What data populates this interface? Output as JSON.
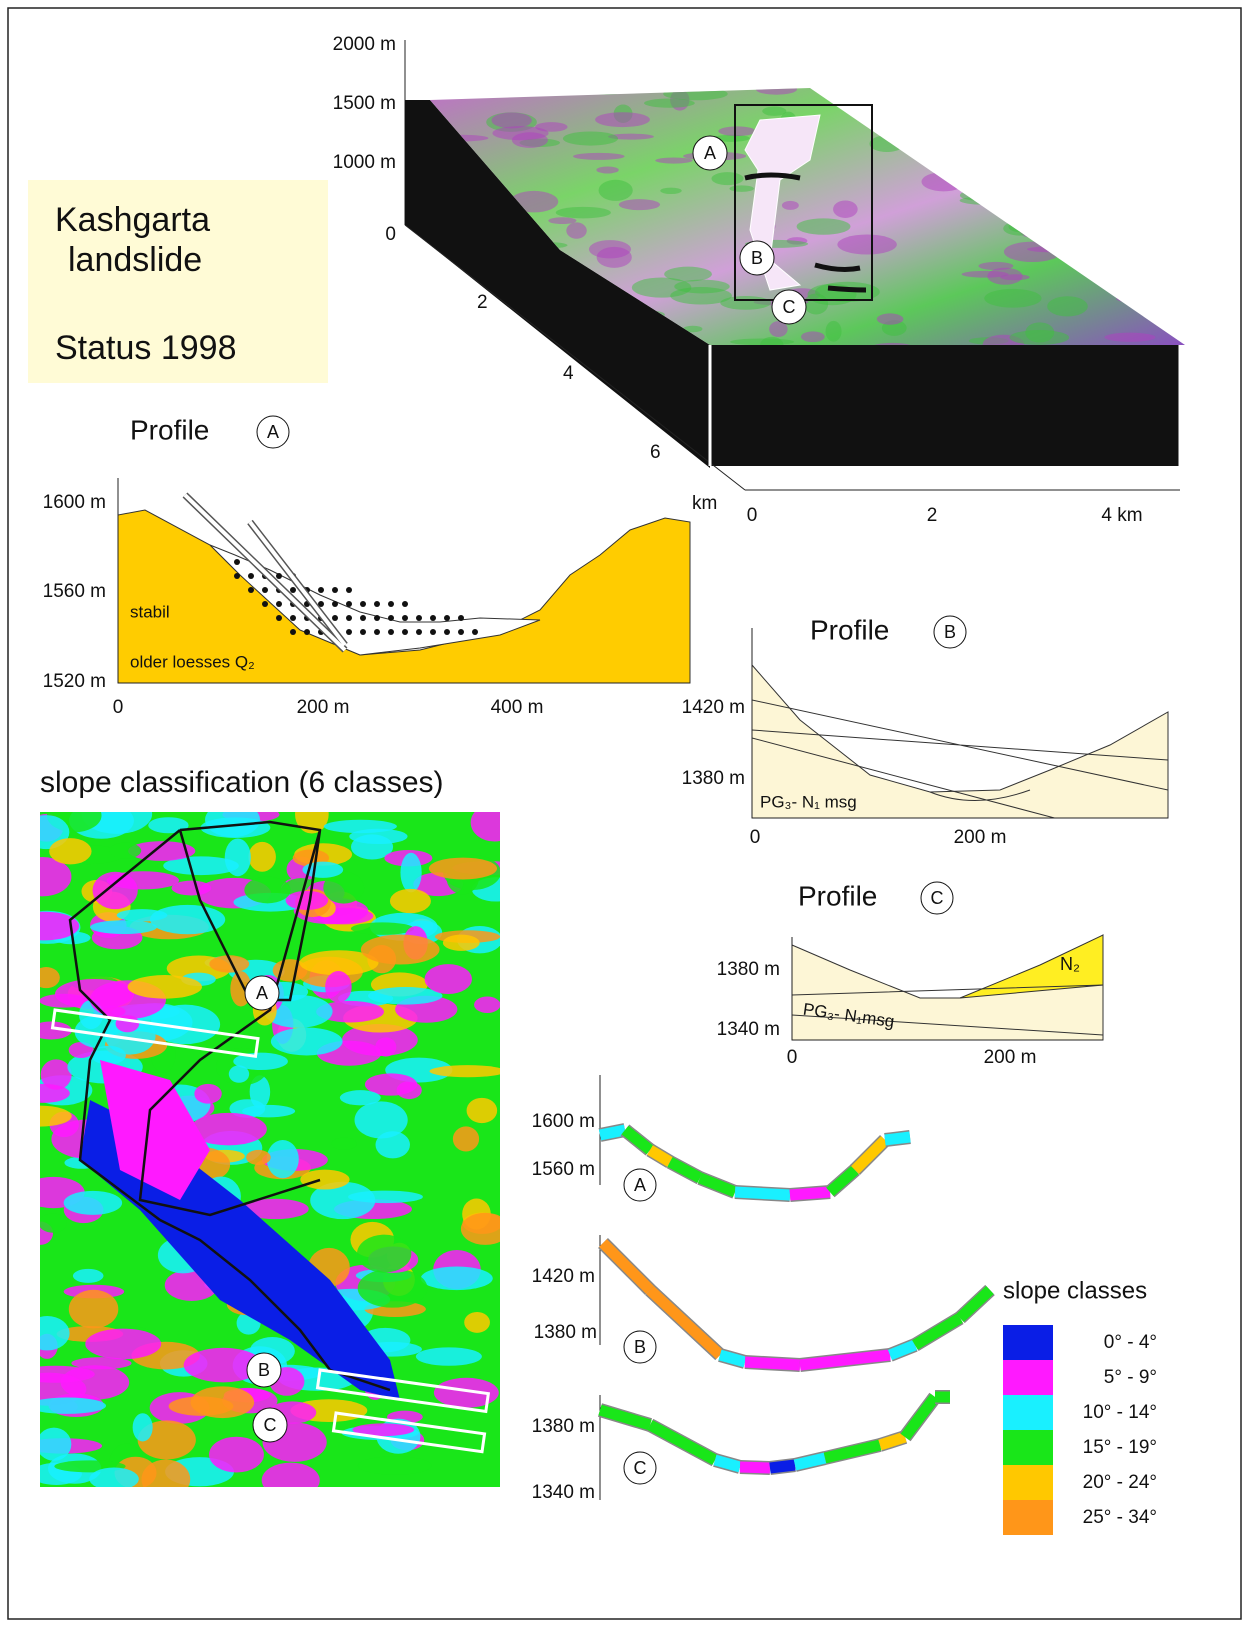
{
  "title_box": {
    "lines": [
      "Kashgarta",
      "landslide",
      "Status 1998"
    ]
  },
  "block_diagram": {
    "z_labels": [
      "2000 m",
      "1500 m",
      "1000 m",
      "0"
    ],
    "depth_labels": [
      "2",
      "4",
      "6",
      "km"
    ],
    "x_labels": [
      "0",
      "2",
      "4 km"
    ],
    "markers": [
      "A",
      "B",
      "C"
    ]
  },
  "profile_a": {
    "title": "Profile",
    "marker": "A",
    "y_labels": [
      "1600 m",
      "1560 m",
      "1520 m"
    ],
    "x_labels": [
      "0",
      "200 m",
      "400 m"
    ],
    "units": [
      "stabil",
      "older loesses Q₂"
    ]
  },
  "profile_b": {
    "title": "Profile",
    "marker": "B",
    "y_labels": [
      "1420 m",
      "1380 m"
    ],
    "x_labels": [
      "0",
      "200 m"
    ],
    "units": [
      "PG₃- N₁ msg"
    ]
  },
  "profile_c": {
    "title": "Profile",
    "marker": "C",
    "y_labels": [
      "1380 m",
      "1340 m"
    ],
    "x_labels": [
      "0",
      "200 m"
    ],
    "units": [
      "PG₃- N₁msg",
      "N₂"
    ]
  },
  "slope_map": {
    "title": "slope classification (6 classes)",
    "markers": [
      "A",
      "B",
      "C"
    ]
  },
  "slope_profiles": [
    {
      "y_labels": [
        "1600 m",
        "1560 m"
      ],
      "marker": "A"
    },
    {
      "y_labels": [
        "1420 m",
        "1380 m"
      ],
      "marker": "B"
    },
    {
      "y_labels": [
        "1380 m",
        "1340 m"
      ],
      "marker": "C"
    }
  ],
  "legend": {
    "title": "slope classes",
    "entries": [
      {
        "label": "0° - 4°",
        "color": "#0a1ee6"
      },
      {
        "label": "5° - 9°",
        "color": "#ff19ff"
      },
      {
        "label": "10° - 14°",
        "color": "#19f0ff"
      },
      {
        "label": "15° - 19°",
        "color": "#19e619"
      },
      {
        "label": "20° - 24°",
        "color": "#ffc800"
      },
      {
        "label": "25° - 34°",
        "color": "#ff9619"
      }
    ]
  }
}
